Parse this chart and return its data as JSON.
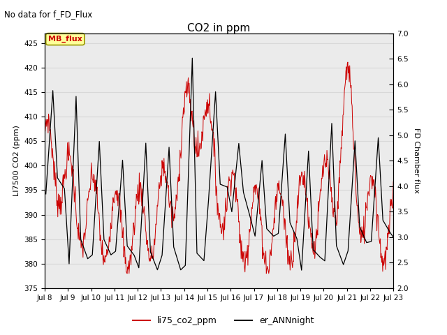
{
  "title": "CO2 in ppm",
  "top_left_text": "No data for f_FD_Flux",
  "left_ylabel": "LI7500 CO2 (ppm)",
  "right_ylabel": "FD Chamber flux",
  "left_ylim": [
    375,
    427
  ],
  "left_yticks": [
    375,
    380,
    385,
    390,
    395,
    400,
    405,
    410,
    415,
    420,
    425
  ],
  "right_ylim": [
    2.0,
    7.0
  ],
  "right_yticks": [
    2.0,
    2.5,
    3.0,
    3.5,
    4.0,
    4.5,
    5.0,
    5.5,
    6.0,
    6.5,
    7.0
  ],
  "xticklabels": [
    "Jul 8",
    "Jul 9",
    "Jul 10",
    "Jul 11",
    "Jul 12",
    "Jul 13",
    "Jul 14",
    "Jul 15",
    "Jul 16",
    "Jul 17",
    "Jul 18",
    "Jul 19",
    "Jul 20",
    "Jul 21",
    "Jul 22",
    "Jul 23"
  ],
  "legend_labels": [
    "li75_co2_ppm",
    "er_ANNnight"
  ],
  "legend_colors": [
    "#cc0000",
    "#000000"
  ],
  "line1_color": "#cc0000",
  "line2_color": "#000000",
  "annotation_text": "MB_flux",
  "annotation_color": "#cc0000",
  "annotation_bg": "#ffff99",
  "annotation_border": "#999900",
  "grid_color": "#d8d8d8",
  "background_color": "#ebebeb"
}
